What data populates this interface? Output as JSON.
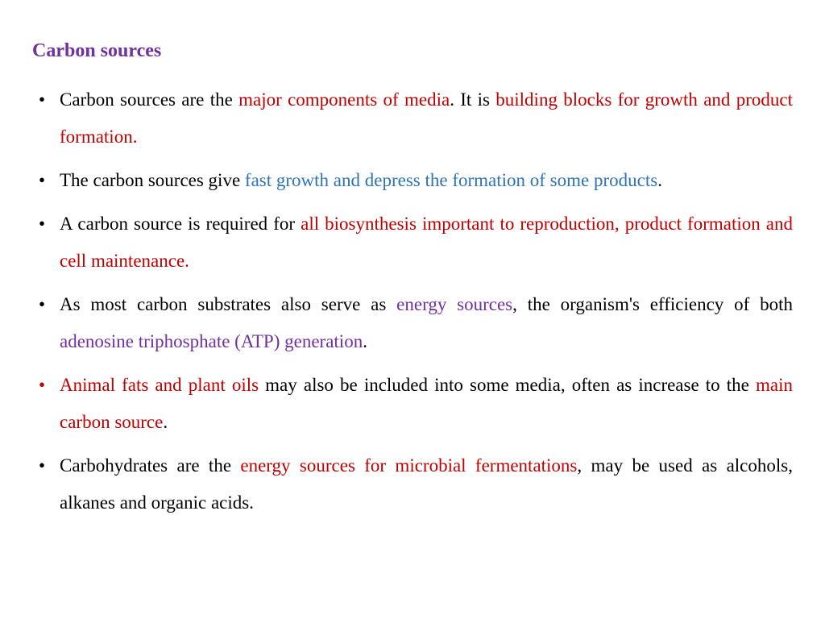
{
  "colors": {
    "purple": "#7030a0",
    "red": "#c00000",
    "blue": "#2e74b5",
    "black": "#000000"
  },
  "heading": {
    "text": "Carbon sources",
    "color": "#7030a0"
  },
  "bullets": [
    {
      "marker_color": "#000000",
      "segments": [
        {
          "text": "Carbon sources are the ",
          "color": "#000000"
        },
        {
          "text": "major components of media",
          "color": "#c00000"
        },
        {
          "text": ". It is ",
          "color": "#000000"
        },
        {
          "text": "building blocks for growth and product formation.",
          "color": "#c00000"
        }
      ]
    },
    {
      "marker_color": "#000000",
      "segments": [
        {
          "text": "The carbon sources give ",
          "color": "#000000"
        },
        {
          "text": "fast growth and depress the formation of some products",
          "color": "#2e74b5"
        },
        {
          "text": ".",
          "color": "#000000"
        }
      ]
    },
    {
      "marker_color": "#000000",
      "segments": [
        {
          "text": "A carbon source is required for ",
          "color": "#000000"
        },
        {
          "text": "all biosynthesis important to reproduction, product formation and cell maintenance.",
          "color": "#c00000"
        }
      ]
    },
    {
      "marker_color": "#000000",
      "segments": [
        {
          "text": "As most carbon substrates also serve as ",
          "color": "#000000"
        },
        {
          "text": "energy sources",
          "color": "#7030a0"
        },
        {
          "text": ", the organism's efficiency of both ",
          "color": "#000000"
        },
        {
          "text": "adenosine triphosphate (ATP) generation",
          "color": "#7030a0"
        },
        {
          "text": ".",
          "color": "#000000"
        }
      ]
    },
    {
      "marker_color": "#c00000",
      "segments": [
        {
          "text": "Animal fats and plant oils",
          "color": "#c00000"
        },
        {
          "text": " may also be included into some media, often as increase to the ",
          "color": "#000000"
        },
        {
          "text": "main carbon source",
          "color": "#c00000"
        },
        {
          "text": ".",
          "color": "#000000"
        }
      ]
    },
    {
      "marker_color": "#000000",
      "segments": [
        {
          "text": "Carbohydrates are the ",
          "color": "#000000"
        },
        {
          "text": "energy sources for microbial fermentations",
          "color": "#c00000"
        },
        {
          "text": ", may be used as alcohols, alkanes and organic acids.",
          "color": "#000000"
        }
      ]
    }
  ]
}
